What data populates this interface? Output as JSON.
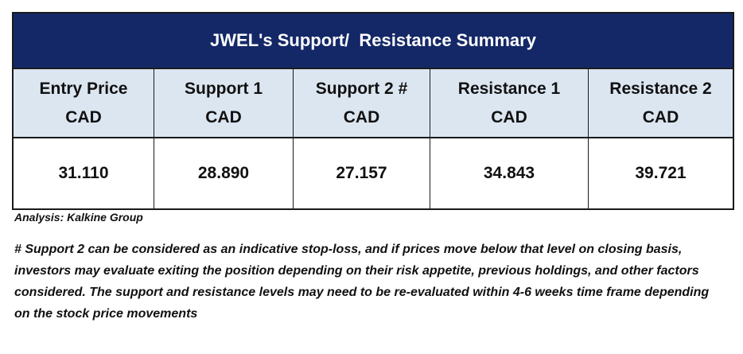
{
  "table": {
    "title": "JWEL's Support/  Resistance Summary",
    "columns": [
      {
        "label_line1": "Entry Price",
        "label_line2": "CAD",
        "value": "31.110"
      },
      {
        "label_line1": "Support 1",
        "label_line2": "CAD",
        "value": "28.890"
      },
      {
        "label_line1": "Support 2 #",
        "label_line2": "CAD",
        "value": "27.157"
      },
      {
        "label_line1": "Resistance 1",
        "label_line2": "CAD",
        "value": "34.843"
      },
      {
        "label_line1": "Resistance 2",
        "label_line2": "CAD",
        "value": "39.721"
      }
    ],
    "colors": {
      "title_background": "#142867",
      "header_background": "#dce6f1"
    }
  },
  "analysis_credit": "Analysis: Kalkine Group",
  "footnote": "# Support 2 can be considered as an indicative stop-loss, and if prices move below that level on closing basis, investors may evaluate exiting the position depending on their risk appetite, previous holdings, and other factors considered. The support and resistance levels may need to be re-evaluated within 4-6 weeks time frame depending on the stock price movements"
}
